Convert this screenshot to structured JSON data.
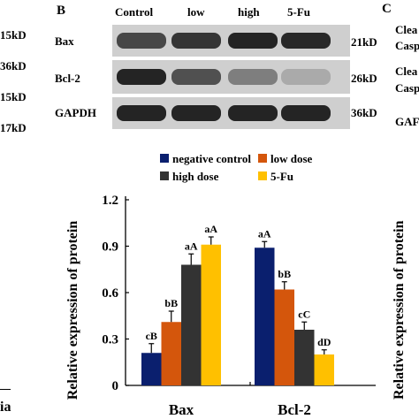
{
  "left_fragment": {
    "labels": [
      "15kD",
      "36kD",
      "15kD",
      "17kD"
    ],
    "bottom_text": "ia"
  },
  "panel_b": {
    "letter": "B",
    "lanes": [
      "Control",
      "low",
      "high",
      "5-Fu"
    ],
    "blots": [
      {
        "protein": "Bax",
        "kd": "21kD",
        "intensity": [
          0.75,
          0.85,
          0.95,
          0.92
        ]
      },
      {
        "protein": "Bcl-2",
        "kd": "26kD",
        "intensity": [
          0.95,
          0.7,
          0.45,
          0.2
        ]
      },
      {
        "protein": "GAPDH",
        "kd": "36kD",
        "intensity": [
          0.95,
          0.95,
          0.95,
          0.95
        ]
      }
    ]
  },
  "panel_c": {
    "letter": "C",
    "fragments": [
      "Clea",
      "Casp",
      "Clea",
      "Casp",
      "GAF"
    ],
    "ylabel_fragment": "Relative expression of protein"
  },
  "colors": {
    "negative_control": "#0a1f6e",
    "low_dose": "#d4560c",
    "high_dose": "#333333",
    "five_fu": "#ffc000",
    "blot_bg": "#cfcfcf",
    "band": "#1a1a1a"
  },
  "chart_data": {
    "type": "bar",
    "categories": [
      "Bax",
      "Bcl-2"
    ],
    "ylabel": "Relative expression of protein",
    "ylim": [
      0,
      1.2
    ],
    "yticks": [
      "0",
      "0.3",
      "0.6",
      "0.9",
      "1.2"
    ],
    "legend_position": "top",
    "series": [
      {
        "name": "negative control",
        "color": "#0a1f6e",
        "values": [
          0.21,
          0.89
        ],
        "errors": [
          0.06,
          0.04
        ],
        "labels": [
          "cB",
          "aA"
        ]
      },
      {
        "name": "low dose",
        "color": "#d4560c",
        "values": [
          0.41,
          0.62
        ],
        "errors": [
          0.07,
          0.05
        ],
        "labels": [
          "bB",
          "bB"
        ]
      },
      {
        "name": "high dose",
        "color": "#333333",
        "values": [
          0.78,
          0.36
        ],
        "errors": [
          0.07,
          0.05
        ],
        "labels": [
          "aA",
          "cC"
        ]
      },
      {
        "name": "5-Fu",
        "color": "#ffc000",
        "values": [
          0.91,
          0.2
        ],
        "errors": [
          0.05,
          0.03
        ],
        "labels": [
          "aA",
          "dD"
        ]
      }
    ]
  }
}
